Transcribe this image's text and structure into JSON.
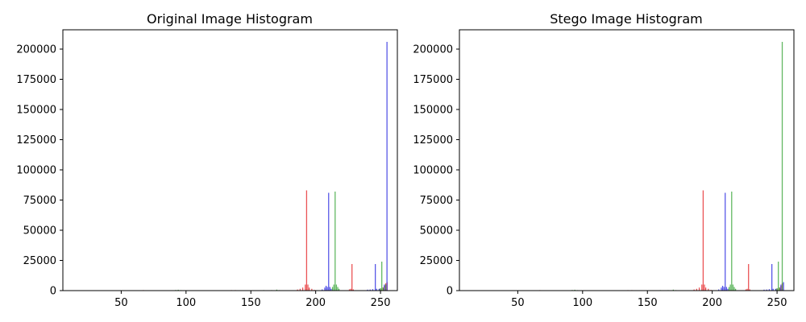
{
  "chart_data": [
    {
      "type": "bar",
      "title": "Original Image Histogram",
      "xlabel": "",
      "ylabel": "",
      "xlim": [
        5,
        263
      ],
      "ylim": [
        0,
        216000
      ],
      "x_ticks": [
        50,
        100,
        150,
        200,
        250
      ],
      "x_tick_labels": [
        "50",
        "100",
        "150",
        "200",
        "250"
      ],
      "y_ticks": [
        0,
        25000,
        50000,
        75000,
        100000,
        125000,
        150000,
        175000,
        200000
      ],
      "y_tick_labels": [
        "0",
        "25000",
        "50000",
        "75000",
        "100000",
        "125000",
        "150000",
        "175000",
        "200000"
      ],
      "grid": false,
      "legend": "none",
      "series": [
        {
          "color": "#e41a1c",
          "points": [
            {
              "x": 67,
              "y": 300
            },
            {
              "x": 135,
              "y": 300
            },
            {
              "x": 138,
              "y": 250
            },
            {
              "x": 186,
              "y": 900
            },
            {
              "x": 188,
              "y": 1500
            },
            {
              "x": 190,
              "y": 2500
            },
            {
              "x": 192,
              "y": 5000
            },
            {
              "x": 193,
              "y": 83000
            },
            {
              "x": 194,
              "y": 5000
            },
            {
              "x": 195,
              "y": 2500
            },
            {
              "x": 197,
              "y": 1500
            },
            {
              "x": 199,
              "y": 600
            },
            {
              "x": 226,
              "y": 1000
            },
            {
              "x": 227,
              "y": 1500
            },
            {
              "x": 228,
              "y": 22000
            },
            {
              "x": 229,
              "y": 1000
            },
            {
              "x": 250,
              "y": 1500
            },
            {
              "x": 252,
              "y": 2500
            },
            {
              "x": 253,
              "y": 4000
            },
            {
              "x": 254,
              "y": 6000
            },
            {
              "x": 255,
              "y": 7000
            }
          ]
        },
        {
          "color": "#2ca02c",
          "points": [
            {
              "x": 92,
              "y": 500
            },
            {
              "x": 94,
              "y": 700
            },
            {
              "x": 96,
              "y": 400
            },
            {
              "x": 160,
              "y": 300
            },
            {
              "x": 166,
              "y": 300
            },
            {
              "x": 170,
              "y": 800
            },
            {
              "x": 172,
              "y": 400
            },
            {
              "x": 213,
              "y": 3000
            },
            {
              "x": 214,
              "y": 5000
            },
            {
              "x": 215,
              "y": 82000
            },
            {
              "x": 216,
              "y": 5000
            },
            {
              "x": 217,
              "y": 3000
            },
            {
              "x": 218,
              "y": 1500
            },
            {
              "x": 249,
              "y": 1200
            },
            {
              "x": 250,
              "y": 2000
            },
            {
              "x": 251,
              "y": 24000
            },
            {
              "x": 252,
              "y": 2500
            },
            {
              "x": 254,
              "y": 5000
            }
          ]
        },
        {
          "color": "#1f1fdf",
          "points": [
            {
              "x": 205,
              "y": 1000
            },
            {
              "x": 207,
              "y": 2500
            },
            {
              "x": 208,
              "y": 4000
            },
            {
              "x": 209,
              "y": 3000
            },
            {
              "x": 210,
              "y": 81000
            },
            {
              "x": 211,
              "y": 3000
            },
            {
              "x": 212,
              "y": 1500
            },
            {
              "x": 240,
              "y": 800
            },
            {
              "x": 242,
              "y": 900
            },
            {
              "x": 244,
              "y": 1200
            },
            {
              "x": 246,
              "y": 22000
            },
            {
              "x": 247,
              "y": 1500
            },
            {
              "x": 249,
              "y": 1500
            },
            {
              "x": 253,
              "y": 5000
            },
            {
              "x": 255,
              "y": 206000
            }
          ]
        }
      ]
    },
    {
      "type": "bar",
      "title": "Stego Image Histogram",
      "xlabel": "",
      "ylabel": "",
      "xlim": [
        5,
        263
      ],
      "ylim": [
        0,
        216000
      ],
      "x_ticks": [
        50,
        100,
        150,
        200,
        250
      ],
      "x_tick_labels": [
        "50",
        "100",
        "150",
        "200",
        "250"
      ],
      "y_ticks": [
        0,
        25000,
        50000,
        75000,
        100000,
        125000,
        150000,
        175000,
        200000
      ],
      "y_tick_labels": [
        "0",
        "25000",
        "50000",
        "75000",
        "100000",
        "125000",
        "150000",
        "175000",
        "200000"
      ],
      "grid": false,
      "legend": "none",
      "series": [
        {
          "color": "#e41a1c",
          "points": [
            {
              "x": 67,
              "y": 300
            },
            {
              "x": 135,
              "y": 300
            },
            {
              "x": 138,
              "y": 250
            },
            {
              "x": 186,
              "y": 900
            },
            {
              "x": 188,
              "y": 1500
            },
            {
              "x": 190,
              "y": 2500
            },
            {
              "x": 192,
              "y": 5000
            },
            {
              "x": 193,
              "y": 83000
            },
            {
              "x": 194,
              "y": 5000
            },
            {
              "x": 195,
              "y": 2500
            },
            {
              "x": 197,
              "y": 1500
            },
            {
              "x": 199,
              "y": 600
            },
            {
              "x": 226,
              "y": 1000
            },
            {
              "x": 227,
              "y": 1500
            },
            {
              "x": 228,
              "y": 22000
            },
            {
              "x": 229,
              "y": 1000
            },
            {
              "x": 250,
              "y": 1500
            },
            {
              "x": 252,
              "y": 2500
            },
            {
              "x": 253,
              "y": 4000
            },
            {
              "x": 254,
              "y": 6000
            }
          ]
        },
        {
          "color": "#2ca02c",
          "points": [
            {
              "x": 92,
              "y": 500
            },
            {
              "x": 94,
              "y": 700
            },
            {
              "x": 96,
              "y": 400
            },
            {
              "x": 160,
              "y": 300
            },
            {
              "x": 166,
              "y": 300
            },
            {
              "x": 170,
              "y": 800
            },
            {
              "x": 172,
              "y": 400
            },
            {
              "x": 213,
              "y": 3000
            },
            {
              "x": 214,
              "y": 5000
            },
            {
              "x": 215,
              "y": 82000
            },
            {
              "x": 216,
              "y": 5000
            },
            {
              "x": 217,
              "y": 3000
            },
            {
              "x": 218,
              "y": 1500
            },
            {
              "x": 249,
              "y": 1200
            },
            {
              "x": 250,
              "y": 2000
            },
            {
              "x": 251,
              "y": 24000
            },
            {
              "x": 252,
              "y": 2500
            },
            {
              "x": 254,
              "y": 206000
            }
          ]
        },
        {
          "color": "#1f1fdf",
          "points": [
            {
              "x": 205,
              "y": 1000
            },
            {
              "x": 207,
              "y": 2500
            },
            {
              "x": 208,
              "y": 4000
            },
            {
              "x": 209,
              "y": 3000
            },
            {
              "x": 210,
              "y": 81000
            },
            {
              "x": 211,
              "y": 3000
            },
            {
              "x": 212,
              "y": 1500
            },
            {
              "x": 240,
              "y": 800
            },
            {
              "x": 242,
              "y": 900
            },
            {
              "x": 244,
              "y": 1200
            },
            {
              "x": 246,
              "y": 22000
            },
            {
              "x": 247,
              "y": 1500
            },
            {
              "x": 249,
              "y": 1500
            },
            {
              "x": 253,
              "y": 5000
            },
            {
              "x": 255,
              "y": 7000
            }
          ]
        }
      ]
    }
  ]
}
